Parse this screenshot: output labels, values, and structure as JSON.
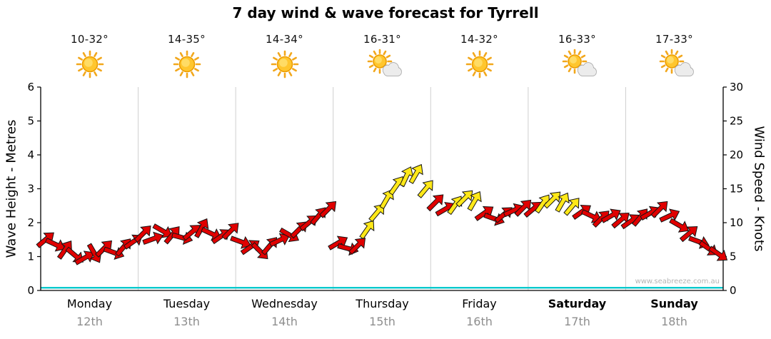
{
  "title": "7 day wind & wave forecast for Tyrrell",
  "watermark": "www.seabreeze.com.au",
  "days": [
    {
      "name": "Monday",
      "date": "12th",
      "temp": "10-32°",
      "icon": "sunny",
      "bold": false
    },
    {
      "name": "Tuesday",
      "date": "13th",
      "temp": "14-35°",
      "icon": "sunny",
      "bold": false
    },
    {
      "name": "Wednesday",
      "date": "14th",
      "temp": "14-34°",
      "icon": "sunny",
      "bold": false
    },
    {
      "name": "Thursday",
      "date": "15th",
      "temp": "16-31°",
      "icon": "partly-cloudy",
      "bold": false
    },
    {
      "name": "Friday",
      "date": "16th",
      "temp": "14-32°",
      "icon": "sunny",
      "bold": false
    },
    {
      "name": "Saturday",
      "date": "17th",
      "temp": "16-33°",
      "icon": "partly-cloudy",
      "bold": true
    },
    {
      "name": "Sunday",
      "date": "18th",
      "temp": "17-33°",
      "icon": "partly-cloudy",
      "bold": true
    }
  ],
  "chart_data": {
    "type": "wind-arrows-timeseries",
    "title": "7 day wind & wave forecast for Tyrrell",
    "categories": [
      "Monday",
      "Tuesday",
      "Wednesday",
      "Thursday",
      "Friday",
      "Saturday",
      "Sunday"
    ],
    "y_left": {
      "label": "Wave Height - Metres",
      "min": 0,
      "max": 6,
      "ticks": [
        0,
        1,
        2,
        3,
        4,
        5,
        6
      ]
    },
    "y_right": {
      "label": "Wind Speed - Knots",
      "min": 0,
      "max": 30,
      "ticks": [
        0,
        5,
        10,
        15,
        20,
        25,
        30
      ]
    },
    "grid": "vertical-day-separators",
    "legend": "none",
    "hours_per_day": 24,
    "offsets_hours": [
      1.2,
      3.6,
      6.0,
      8.4,
      10.8,
      13.2,
      15.6,
      18.0,
      20.4,
      22.8
    ],
    "wind_knots": [
      [
        7.5,
        6.8,
        6.0,
        5.2,
        4.8,
        5.5,
        6.2,
        5.6,
        6.4,
        7.2
      ],
      [
        8.4,
        7.6,
        8.8,
        8.2,
        7.8,
        8.6,
        9.2,
        8.4,
        8.0,
        8.8
      ],
      [
        7.2,
        6.4,
        5.8,
        6.6,
        7.4,
        8.2,
        9.0,
        10.0,
        11.0,
        12.0
      ],
      [
        7.0,
        6.2,
        6.6,
        9.0,
        11.5,
        13.5,
        15.5,
        16.8,
        17.2,
        15.0
      ],
      [
        13.0,
        12.0,
        12.6,
        13.6,
        13.2,
        11.4,
        10.6,
        11.2,
        11.8,
        12.2
      ],
      [
        12.0,
        12.8,
        13.4,
        13.0,
        12.4,
        11.6,
        11.0,
        10.6,
        11.0,
        10.4
      ],
      [
        10.2,
        10.8,
        11.4,
        12.0,
        11.0,
        9.6,
        8.4,
        7.2,
        6.2,
        5.4
      ]
    ],
    "wind_color": [
      [
        "r",
        "r",
        "r",
        "r",
        "r",
        "r",
        "r",
        "r",
        "r",
        "r"
      ],
      [
        "r",
        "r",
        "r",
        "r",
        "r",
        "r",
        "r",
        "r",
        "r",
        "r"
      ],
      [
        "r",
        "r",
        "r",
        "r",
        "r",
        "r",
        "r",
        "r",
        "r",
        "r"
      ],
      [
        "r",
        "r",
        "r",
        "y",
        "y",
        "y",
        "y",
        "y",
        "y",
        "y"
      ],
      [
        "r",
        "r",
        "y",
        "y",
        "y",
        "r",
        "r",
        "r",
        "r",
        "r"
      ],
      [
        "r",
        "y",
        "y",
        "y",
        "y",
        "r",
        "r",
        "r",
        "r",
        "r"
      ],
      [
        "r",
        "r",
        "r",
        "r",
        "r",
        "r",
        "r",
        "r",
        "r",
        "r"
      ]
    ],
    "wind_rot_deg": [
      [
        -40,
        25,
        -55,
        40,
        -30,
        60,
        -45,
        20,
        -50,
        -35
      ],
      [
        -45,
        -20,
        30,
        -50,
        15,
        -40,
        -60,
        25,
        -35,
        -45
      ],
      [
        20,
        -35,
        45,
        -50,
        -25,
        30,
        -45,
        -40,
        -50,
        -45
      ],
      [
        -30,
        15,
        -45,
        -55,
        -50,
        -60,
        -55,
        -65,
        -60,
        -50
      ],
      [
        -45,
        -30,
        -55,
        -45,
        -60,
        -35,
        20,
        -40,
        -25,
        -45
      ],
      [
        -40,
        -55,
        -45,
        -60,
        -50,
        -35,
        25,
        -45,
        -30,
        -40
      ],
      [
        -35,
        -50,
        -30,
        -45,
        -25,
        30,
        -40,
        20,
        35,
        35
      ]
    ],
    "wave_height_m": 0.08,
    "color_map": {
      "r": "#E00000",
      "y": "#FFE818"
    },
    "wave_line_color": "#00C8CC",
    "separator_color": "#CFCFCF",
    "axis_color": "#000000"
  }
}
